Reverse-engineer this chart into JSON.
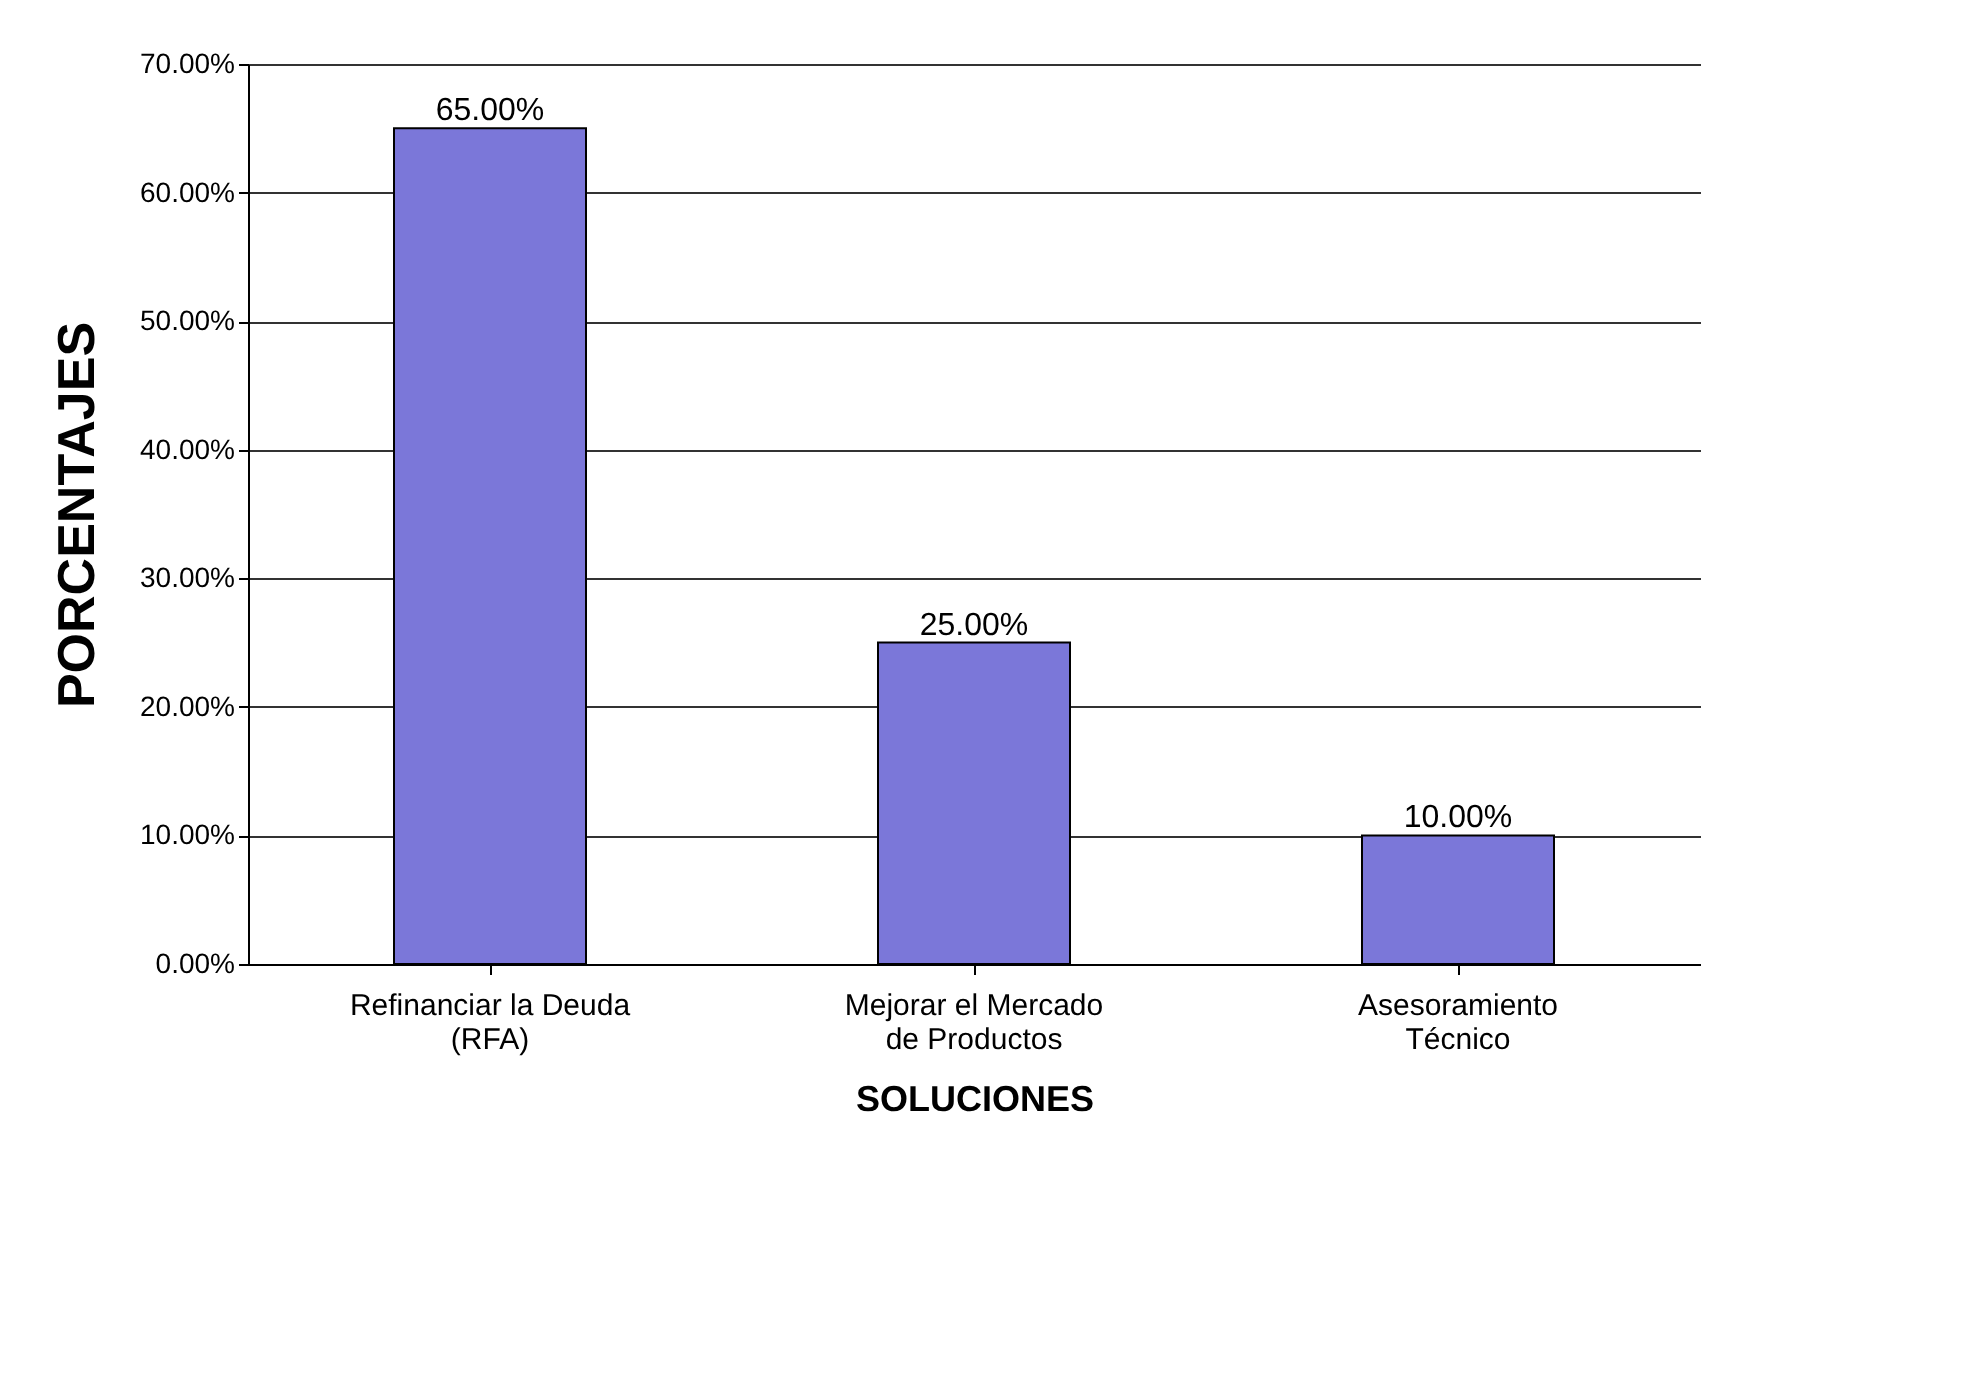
{
  "chart_data": {
    "type": "bar",
    "xlabel": "SOLUCIONES",
    "ylabel": "PORCENTAJES",
    "categories": [
      "Refinanciar la Deuda (RFA)",
      "Mejorar el Mercado de Productos",
      "Asesoramiento Técnico"
    ],
    "values": [
      65,
      25,
      10
    ],
    "value_labels": [
      "65.00%",
      "25.00%",
      "10.00%"
    ],
    "color": "#7b77d9",
    "ylim": [
      0,
      70
    ],
    "yticks": [
      {
        "value": 0,
        "label": "0.00%"
      },
      {
        "value": 10,
        "label": "10.00%"
      },
      {
        "value": 20,
        "label": "20.00%"
      },
      {
        "value": 30,
        "label": "30.00%"
      },
      {
        "value": 40,
        "label": "40.00%"
      },
      {
        "value": 50,
        "label": "50.00%"
      },
      {
        "value": 60,
        "label": "60.00%"
      },
      {
        "value": 70,
        "label": "70.00%"
      }
    ],
    "grid": "y"
  }
}
